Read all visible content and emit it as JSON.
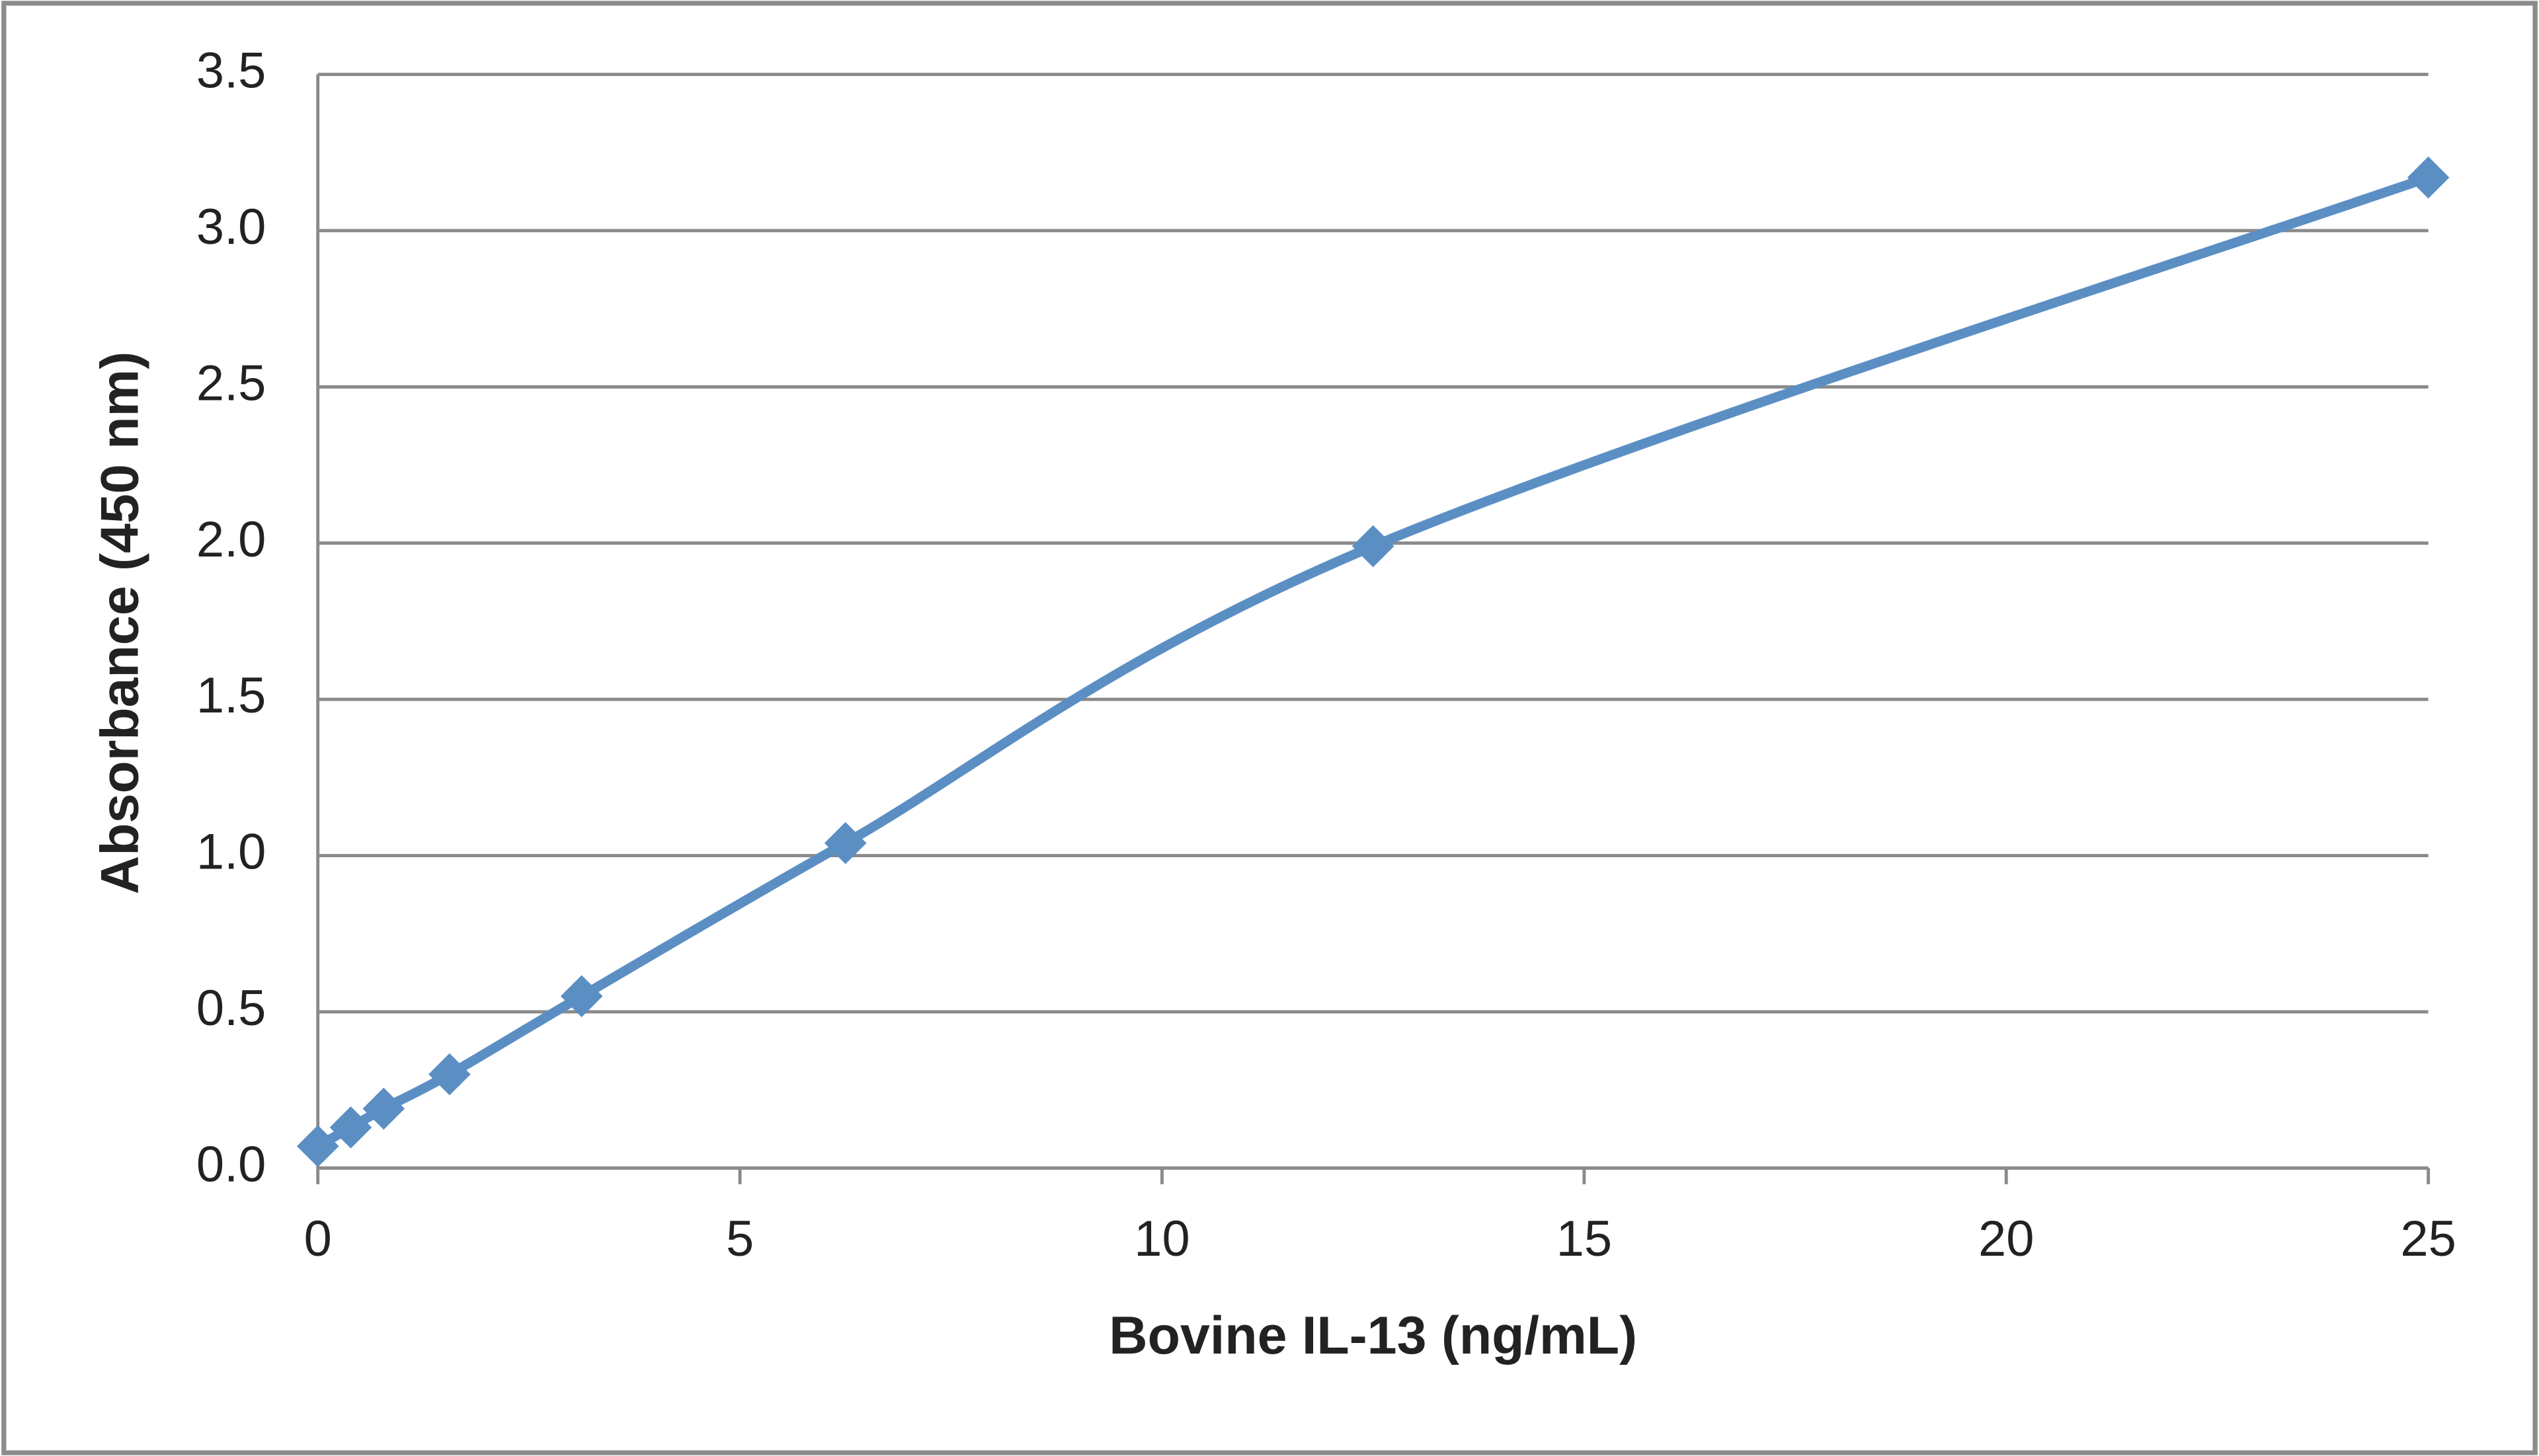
{
  "chart_data": {
    "type": "line",
    "x_label": "Bovine IL-13 (ng/mL)",
    "y_label": "Absorbance  (450 nm)",
    "x": [
      0,
      0.39,
      0.78,
      1.56,
      3.125,
      6.25,
      12.5,
      25
    ],
    "series": [
      {
        "color": "#5b8fc4",
        "values": [
          0.07,
          0.13,
          0.19,
          0.3,
          0.55,
          1.04,
          1.99,
          3.17
        ]
      }
    ],
    "xlim": [
      0,
      25
    ],
    "xticks": [
      0,
      5,
      10,
      15,
      20,
      25
    ],
    "ylim": [
      0,
      3.5
    ],
    "yticks": [
      {
        "value": 0,
        "label": "0.0"
      },
      0.5,
      {
        "value": 1,
        "label": "1.0"
      },
      1.5,
      {
        "value": 2,
        "label": "2.0"
      },
      2.5,
      {
        "value": 3,
        "label": "3.0"
      },
      3.5
    ],
    "grid": true,
    "smooth": true,
    "marker": "diamond"
  }
}
